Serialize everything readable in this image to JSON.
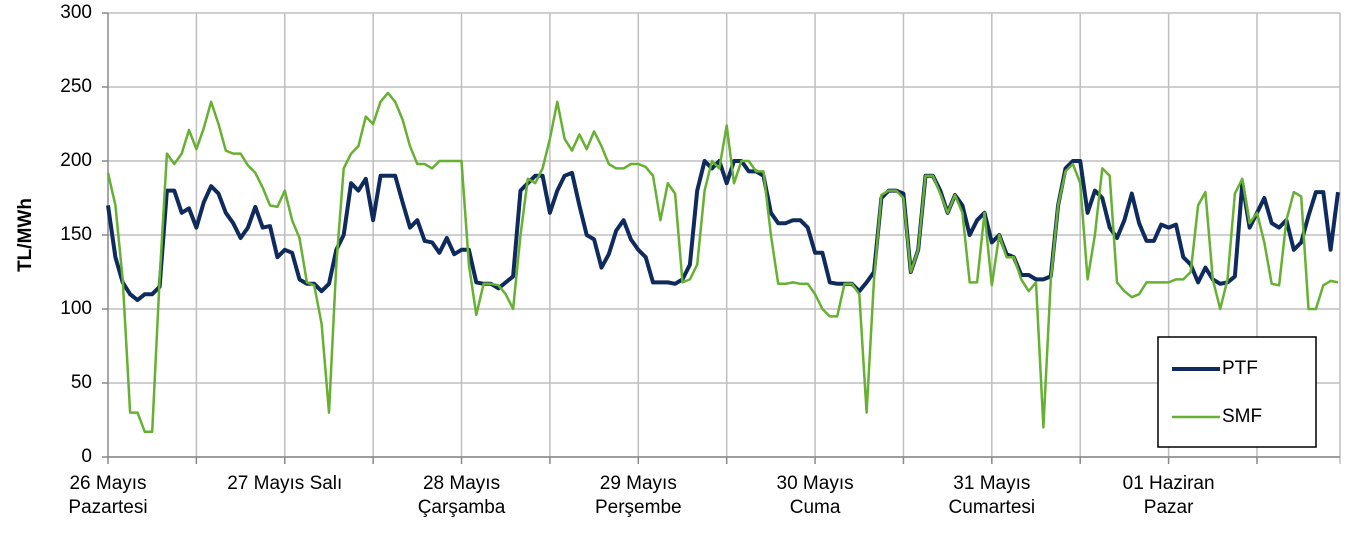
{
  "chart_data": {
    "type": "line",
    "ylabel": "TL/MWh",
    "categories": [
      "26 Mayıs\nPazartesi",
      null,
      null,
      null,
      null,
      null,
      null,
      null,
      null,
      null,
      null,
      null,
      null,
      null,
      null,
      null,
      null,
      null,
      null,
      null,
      null,
      null,
      null,
      null,
      "27 Mayıs Salı",
      null,
      null,
      null,
      null,
      null,
      null,
      null,
      null,
      null,
      null,
      null,
      null,
      null,
      null,
      null,
      null,
      null,
      null,
      null,
      null,
      null,
      null,
      null,
      "28 Mayıs\nÇarşamba",
      null,
      null,
      null,
      null,
      null,
      null,
      null,
      null,
      null,
      null,
      null,
      null,
      null,
      null,
      null,
      null,
      null,
      null,
      null,
      null,
      null,
      null,
      null,
      "29 Mayıs\nPerşembe",
      null,
      null,
      null,
      null,
      null,
      null,
      null,
      null,
      null,
      null,
      null,
      null,
      null,
      null,
      null,
      null,
      null,
      null,
      null,
      null,
      null,
      null,
      null,
      "30 Mayıs\nCuma",
      null,
      null,
      null,
      null,
      null,
      null,
      null,
      null,
      null,
      null,
      null,
      null,
      null,
      null,
      null,
      null,
      null,
      null,
      null,
      null,
      null,
      null,
      null,
      "31 Mayıs\nCumartesi",
      null,
      null,
      null,
      null,
      null,
      null,
      null,
      null,
      null,
      null,
      null,
      null,
      null,
      null,
      null,
      null,
      null,
      null,
      null,
      null,
      null,
      null,
      null,
      "01 Haziran\nPazar",
      null,
      null,
      null,
      null,
      null,
      null,
      null,
      null,
      null,
      null,
      null,
      null,
      null,
      null,
      null,
      null,
      null,
      null,
      null,
      null,
      null,
      null,
      null
    ],
    "series": [
      {
        "name": "PTF",
        "color": "#0f2a5c",
        "width": 4,
        "values": [
          170,
          135,
          118,
          110,
          106,
          110,
          110,
          115,
          180,
          180,
          165,
          168,
          155,
          172,
          183,
          178,
          165,
          158,
          148,
          155,
          169,
          155,
          156,
          135,
          140,
          138,
          120,
          117,
          117,
          112,
          117,
          140,
          150,
          185,
          180,
          188,
          160,
          190,
          190,
          190,
          172,
          155,
          160,
          146,
          145,
          138,
          148,
          137,
          140,
          140,
          118,
          117,
          117,
          114,
          118,
          122,
          180,
          185,
          190,
          190,
          165,
          180,
          190,
          192,
          170,
          150,
          147,
          128,
          137,
          153,
          160,
          147,
          140,
          135,
          118,
          118,
          118,
          117,
          120,
          130,
          180,
          200,
          195,
          200,
          185,
          200,
          200,
          193,
          193,
          190,
          165,
          158,
          158,
          160,
          160,
          155,
          138,
          138,
          118,
          117,
          117,
          117,
          112,
          118,
          125,
          175,
          180,
          180,
          178,
          125,
          140,
          190,
          190,
          180,
          165,
          177,
          170,
          150,
          160,
          165,
          145,
          150,
          137,
          135,
          123,
          123,
          120,
          120,
          122,
          170,
          195,
          200,
          200,
          165,
          180,
          175,
          155,
          148,
          160,
          178,
          158,
          146,
          146,
          157,
          155,
          157,
          135,
          130,
          118,
          128,
          120,
          117,
          118,
          122,
          185,
          155,
          165,
          175,
          158,
          155,
          160,
          140,
          145,
          163,
          179,
          179,
          140,
          179
        ]
      },
      {
        "name": "SMF",
        "color": "#66b032",
        "width": 2.5,
        "values": [
          192,
          170,
          120,
          30,
          30,
          17,
          17,
          120,
          205,
          198,
          205,
          221,
          208,
          222,
          240,
          225,
          207,
          205,
          205,
          197,
          192,
          182,
          170,
          169,
          180,
          160,
          148,
          118,
          116,
          90,
          30,
          130,
          195,
          205,
          210,
          230,
          225,
          240,
          246,
          240,
          228,
          210,
          198,
          198,
          195,
          200,
          200,
          200,
          200,
          130,
          96,
          117,
          117,
          116,
          110,
          100,
          150,
          188,
          185,
          195,
          215,
          240,
          215,
          207,
          218,
          208,
          220,
          210,
          198,
          195,
          195,
          198,
          198,
          196,
          190,
          160,
          185,
          178,
          118,
          120,
          130,
          180,
          200,
          195,
          224,
          185,
          200,
          200,
          193,
          193,
          150,
          117,
          117,
          118,
          117,
          117,
          110,
          100,
          95,
          95,
          117,
          117,
          110,
          30,
          120,
          177,
          180,
          180,
          175,
          125,
          140,
          190,
          190,
          178,
          165,
          177,
          165,
          118,
          118,
          165,
          116,
          150,
          135,
          135,
          120,
          112,
          118,
          20,
          120,
          170,
          193,
          198,
          185,
          120,
          150,
          195,
          190,
          118,
          112,
          108,
          110,
          118,
          118,
          118,
          118,
          120,
          120,
          125,
          170,
          179,
          120,
          100,
          120,
          178,
          188,
          158,
          165,
          145,
          117,
          116,
          160,
          179,
          176,
          100,
          100,
          116,
          119,
          118
        ]
      }
    ],
    "ylim": [
      0,
      300
    ],
    "yticks": [
      0,
      50,
      100,
      150,
      200,
      250,
      300
    ],
    "grid": true,
    "legend": "lower right"
  }
}
